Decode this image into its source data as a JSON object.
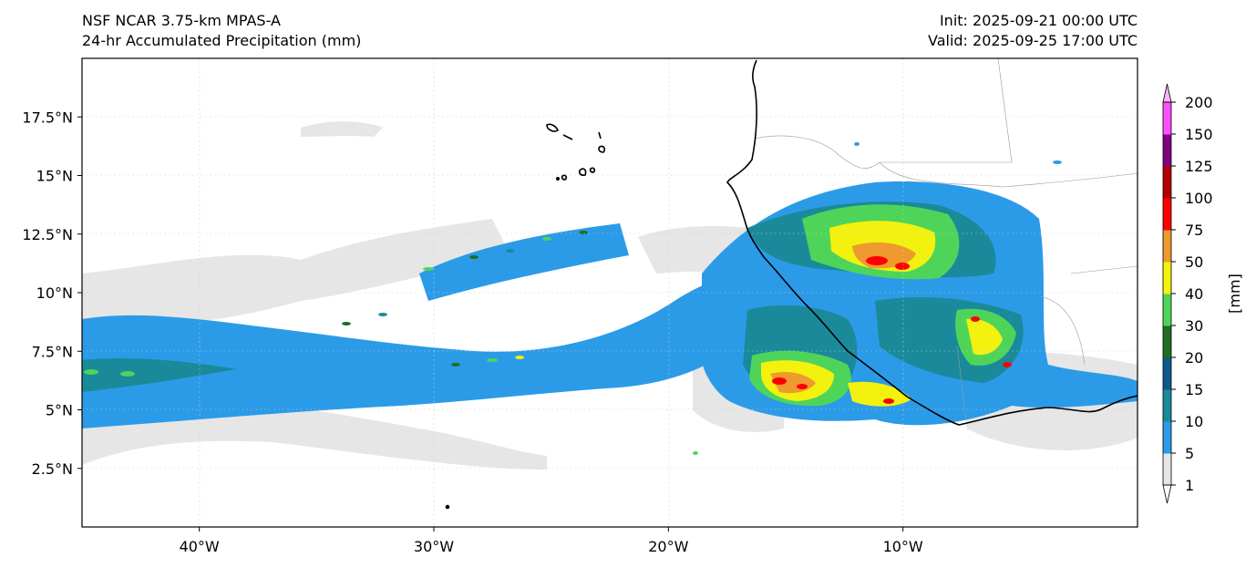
{
  "header": {
    "model": "NSF NCAR 3.75-km MPAS-A",
    "field": "24-hr Accumulated Precipitation (mm)",
    "init": "Init: 2025-09-21 00:00 UTC",
    "valid": "Valid: 2025-09-25 17:00 UTC"
  },
  "map": {
    "projection": "PlateCarree",
    "lon_range": [
      -45,
      0
    ],
    "lat_range": [
      0,
      20
    ],
    "x_ticks": [
      {
        "lon": -40,
        "label": "40°W"
      },
      {
        "lon": -30,
        "label": "30°W"
      },
      {
        "lon": -20,
        "label": "20°W"
      },
      {
        "lon": -10,
        "label": "10°W"
      }
    ],
    "y_ticks": [
      {
        "lat": 17.5,
        "label": "17.5°N"
      },
      {
        "lat": 15,
        "label": "15°N"
      },
      {
        "lat": 12.5,
        "label": "12.5°N"
      },
      {
        "lat": 10,
        "label": "10°N"
      },
      {
        "lat": 7.5,
        "label": "7.5°N"
      },
      {
        "lat": 5,
        "label": "5°N"
      },
      {
        "lat": 2.5,
        "label": "2.5°N"
      }
    ],
    "gridlines": true
  },
  "colorbar": {
    "unit_label": "[mm]",
    "levels": [
      "1",
      "5",
      "10",
      "15",
      "20",
      "30",
      "40",
      "50",
      "75",
      "100",
      "125",
      "150",
      "200"
    ],
    "colors": [
      "#e6e6e6",
      "#2b9be8",
      "#1a8a9a",
      "#0d5a8c",
      "#1f6e24",
      "#4fd45a",
      "#f2f20e",
      "#ee9a2e",
      "#ff0000",
      "#b30000",
      "#800080",
      "#ff4dff"
    ],
    "extend": "both"
  }
}
